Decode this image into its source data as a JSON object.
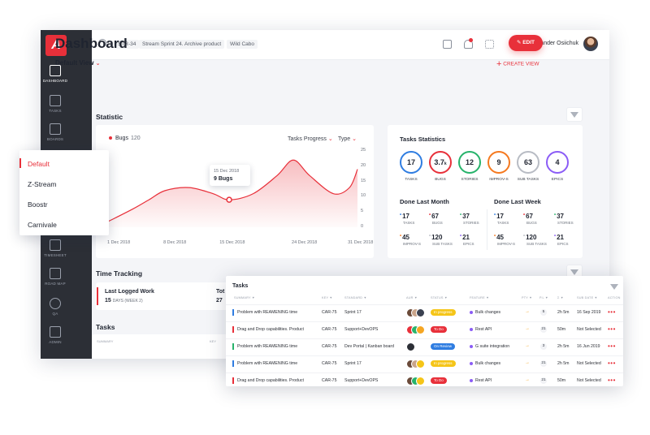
{
  "sidebar": {
    "logo": "A",
    "items": [
      {
        "label": "DASHBOARD",
        "icon": "dashboard-icon"
      },
      {
        "label": "TASKS",
        "icon": "tasks-icon"
      },
      {
        "label": "BOARDS",
        "icon": "boards-icon"
      },
      {
        "label": "TIMESHEET",
        "icon": "timesheet-icon"
      },
      {
        "label": "ROAD MAP",
        "icon": "roadmap-icon"
      },
      {
        "label": "QA",
        "icon": "qa-icon"
      },
      {
        "label": "ADMIN",
        "icon": "admin-icon"
      }
    ]
  },
  "topbar": {
    "crumbs": [
      "STR-34",
      "Stream Sprint 24. Archive product",
      "Wild Cabo"
    ],
    "user_name": "Alexander Osiichuk"
  },
  "header": {
    "title": "Dashboard",
    "edit_label": "EDIT",
    "view_label": "Default View",
    "create_view_label": "CREATE VIEW"
  },
  "statistic": {
    "title": "Statistic",
    "legend_label": "Bugs",
    "legend_count": "120",
    "tasks_progress_label": "Tasks Progress",
    "type_label": "Type",
    "tooltip_date": "15 Dec 2018",
    "tooltip_value": "9 Bugs"
  },
  "chart_data": {
    "type": "area",
    "x": [
      "1 Dec 2018",
      "8 Dec 2018",
      "15 Dec 2018",
      "24 Dec 2018",
      "31 Dec 2018"
    ],
    "series": [
      {
        "name": "Bugs",
        "points": [
          [
            0,
            2
          ],
          [
            3,
            6
          ],
          [
            5,
            9
          ],
          [
            7,
            12
          ],
          [
            10,
            13
          ],
          [
            13,
            11
          ],
          [
            15,
            9
          ],
          [
            18,
            11
          ],
          [
            21,
            17
          ],
          [
            23,
            22
          ],
          [
            25,
            17
          ],
          [
            28,
            11
          ],
          [
            30,
            13
          ],
          [
            31,
            19
          ]
        ]
      }
    ],
    "x_range": [
      0,
      31
    ],
    "y_ticks": [
      "25",
      "20",
      "15",
      "10",
      "5",
      "0"
    ],
    "ylim": [
      0,
      25
    ],
    "grid": false,
    "accent": "#e8303a"
  },
  "tasks_statistics": {
    "title": "Tasks Statistics",
    "circles": [
      {
        "value": "17",
        "label": "TASKS",
        "color": "#2f7de1"
      },
      {
        "value": "3.7",
        "suffix": "k",
        "label": "BUGS",
        "color": "#e8303a"
      },
      {
        "value": "12",
        "label": "STORIES",
        "color": "#27b36b"
      },
      {
        "value": "9",
        "label": "IMPROV-S",
        "color": "#f5791f"
      },
      {
        "value": "63",
        "label": "SUB TASKS",
        "color": "#b8bcc4"
      },
      {
        "value": "4",
        "label": "EPICS",
        "color": "#8b5cf6"
      }
    ],
    "done_month": {
      "title": "Done Last Month",
      "stats": [
        {
          "value": "17",
          "label": "TASKS",
          "color": "#2f7de1"
        },
        {
          "value": "67",
          "label": "BUGS",
          "color": "#e8303a"
        },
        {
          "value": "37",
          "label": "STORIES",
          "color": "#27b36b"
        },
        {
          "value": "45",
          "label": "IMPROV-S",
          "color": "#f5791f"
        },
        {
          "value": "120",
          "label": "SUB TASKS",
          "color": "#b8bcc4"
        },
        {
          "value": "21",
          "label": "EPICS",
          "color": "#8b5cf6"
        }
      ]
    },
    "done_week": {
      "title": "Done Last Week",
      "stats": [
        {
          "value": "17",
          "label": "TASKS",
          "color": "#2f7de1"
        },
        {
          "value": "67",
          "label": "BUGS",
          "color": "#e8303a"
        },
        {
          "value": "37",
          "label": "STORIES",
          "color": "#27b36b"
        },
        {
          "value": "45",
          "label": "IMPROV-S",
          "color": "#f5791f"
        },
        {
          "value": "120",
          "label": "SUB TASKS",
          "color": "#b8bcc4"
        },
        {
          "value": "21",
          "label": "EPICS",
          "color": "#8b5cf6"
        }
      ]
    }
  },
  "time_tracking": {
    "title": "Time Tracking",
    "last_logged_label": "Last Logged Work",
    "last_logged_value": "15",
    "last_logged_unit": "DAYS (WEEK 2)",
    "total_label": "Tot",
    "total_value": "27"
  },
  "tasks_section": {
    "title": "Tasks",
    "col_summary": "SUMMARY",
    "col_key": "KEY"
  },
  "view_dropdown": {
    "options": [
      "Default",
      "Z-Stream",
      "Boostr",
      "Carnivale"
    ],
    "selected": "Default"
  },
  "tasks_panel": {
    "title": "Tasks",
    "headers": [
      "SUMMARY ▼",
      "KEY ▼",
      "STANDARD ▼",
      "AUR ▼",
      "STATUS ▼",
      "FEATURE ▼",
      "PTY ▼",
      "P.L ▼",
      "Σ ▼",
      "SUB DATE ▼",
      "ACTION"
    ],
    "rows": [
      {
        "summary": "Problem with REAMENING time",
        "key": "CAR-75",
        "standard": "Sprint 17",
        "status": "In progress",
        "status_color": "#f5c518",
        "feature": "Bulk changes",
        "feature_color": "#8b5cf6",
        "pl": "5",
        "sum": "2h 5m",
        "date": "16 Sep 2019",
        "bar": "#2f7de1"
      },
      {
        "summary": "Drag and Drop capabilities. Product",
        "key": "CAR-75",
        "standard": "Support+DevOPS",
        "status": "To Do",
        "status_color": "#e8303a",
        "feature": "Rest API",
        "feature_color": "#8b5cf6",
        "pl": "21",
        "sum": "50m",
        "date": "Not Selected",
        "bar": "#e8303a"
      },
      {
        "summary": "Problem with REAMENING time",
        "key": "CAR-75",
        "standard": "Dev Portal | Kanban board",
        "status": "On Review",
        "status_color": "#2f7de1",
        "feature": "G suite integration",
        "feature_color": "#8b5cf6",
        "pl": "3",
        "sum": "2h 5m",
        "date": "16 Jun 2019",
        "bar": "#27b36b"
      },
      {
        "summary": "Problem with REAMENING time",
        "key": "CAR-75",
        "standard": "Sprint 17",
        "status": "In progress",
        "status_color": "#f5c518",
        "feature": "Bulk changes",
        "feature_color": "#8b5cf6",
        "pl": "21",
        "sum": "2h 5m",
        "date": "Not Selected",
        "bar": "#2f7de1"
      },
      {
        "summary": "Drag and Drop capabilities. Product",
        "key": "CAR-75",
        "standard": "Support+DevOPS",
        "status": "To Do",
        "status_color": "#e8303a",
        "feature": "Rest API",
        "feature_color": "#8b5cf6",
        "pl": "21",
        "sum": "50m",
        "date": "Not Selected",
        "bar": "#e8303a"
      }
    ]
  }
}
